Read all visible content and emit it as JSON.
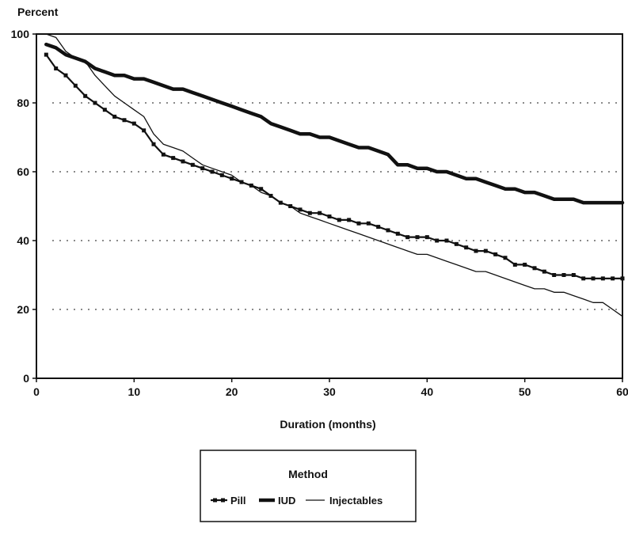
{
  "chart_data": {
    "type": "line",
    "ylabel": "Percent",
    "xlabel": "Duration (months)",
    "xlim": [
      0,
      60
    ],
    "ylim": [
      0,
      100
    ],
    "x_ticks": [
      0,
      10,
      20,
      30,
      40,
      50,
      60
    ],
    "y_ticks": [
      0,
      20,
      40,
      60,
      80,
      100
    ],
    "grid": "dotted horizontal",
    "legend": {
      "title": "Method",
      "placement": "bottom-center"
    },
    "colors": {
      "line": "#111111",
      "background": "#ffffff"
    },
    "series": [
      {
        "name": "Pill",
        "style": "line-with-square-markers",
        "points": [
          [
            1,
            94
          ],
          [
            2,
            90
          ],
          [
            3,
            88
          ],
          [
            4,
            85
          ],
          [
            5,
            82
          ],
          [
            6,
            80
          ],
          [
            7,
            78
          ],
          [
            8,
            76
          ],
          [
            9,
            75
          ],
          [
            10,
            74
          ],
          [
            11,
            72
          ],
          [
            12,
            68
          ],
          [
            13,
            65
          ],
          [
            14,
            64
          ],
          [
            15,
            63
          ],
          [
            16,
            62
          ],
          [
            17,
            61
          ],
          [
            18,
            60
          ],
          [
            19,
            59
          ],
          [
            20,
            58
          ],
          [
            21,
            57
          ],
          [
            22,
            56
          ],
          [
            23,
            55
          ],
          [
            24,
            53
          ],
          [
            25,
            51
          ],
          [
            26,
            50
          ],
          [
            27,
            49
          ],
          [
            28,
            48
          ],
          [
            29,
            48
          ],
          [
            30,
            47
          ],
          [
            31,
            46
          ],
          [
            32,
            46
          ],
          [
            33,
            45
          ],
          [
            34,
            45
          ],
          [
            35,
            44
          ],
          [
            36,
            43
          ],
          [
            37,
            42
          ],
          [
            38,
            41
          ],
          [
            39,
            41
          ],
          [
            40,
            41
          ],
          [
            41,
            40
          ],
          [
            42,
            40
          ],
          [
            43,
            39
          ],
          [
            44,
            38
          ],
          [
            45,
            37
          ],
          [
            46,
            37
          ],
          [
            47,
            36
          ],
          [
            48,
            35
          ],
          [
            49,
            33
          ],
          [
            50,
            33
          ],
          [
            51,
            32
          ],
          [
            52,
            31
          ],
          [
            53,
            30
          ],
          [
            54,
            30
          ],
          [
            55,
            30
          ],
          [
            56,
            29
          ],
          [
            57,
            29
          ],
          [
            58,
            29
          ],
          [
            59,
            29
          ],
          [
            60,
            29
          ]
        ]
      },
      {
        "name": "IUD",
        "style": "thick-line",
        "points": [
          [
            1,
            97
          ],
          [
            2,
            96
          ],
          [
            3,
            94
          ],
          [
            4,
            93
          ],
          [
            5,
            92
          ],
          [
            6,
            90
          ],
          [
            7,
            89
          ],
          [
            8,
            88
          ],
          [
            9,
            88
          ],
          [
            10,
            87
          ],
          [
            11,
            87
          ],
          [
            12,
            86
          ],
          [
            13,
            85
          ],
          [
            14,
            84
          ],
          [
            15,
            84
          ],
          [
            16,
            83
          ],
          [
            17,
            82
          ],
          [
            18,
            81
          ],
          [
            19,
            80
          ],
          [
            20,
            79
          ],
          [
            21,
            78
          ],
          [
            22,
            77
          ],
          [
            23,
            76
          ],
          [
            24,
            74
          ],
          [
            25,
            73
          ],
          [
            26,
            72
          ],
          [
            27,
            71
          ],
          [
            28,
            71
          ],
          [
            29,
            70
          ],
          [
            30,
            70
          ],
          [
            31,
            69
          ],
          [
            32,
            68
          ],
          [
            33,
            67
          ],
          [
            34,
            67
          ],
          [
            35,
            66
          ],
          [
            36,
            65
          ],
          [
            37,
            62
          ],
          [
            38,
            62
          ],
          [
            39,
            61
          ],
          [
            40,
            61
          ],
          [
            41,
            60
          ],
          [
            42,
            60
          ],
          [
            43,
            59
          ],
          [
            44,
            58
          ],
          [
            45,
            58
          ],
          [
            46,
            57
          ],
          [
            47,
            56
          ],
          [
            48,
            55
          ],
          [
            49,
            55
          ],
          [
            50,
            54
          ],
          [
            51,
            54
          ],
          [
            52,
            53
          ],
          [
            53,
            52
          ],
          [
            54,
            52
          ],
          [
            55,
            52
          ],
          [
            56,
            51
          ],
          [
            57,
            51
          ],
          [
            58,
            51
          ],
          [
            59,
            51
          ],
          [
            60,
            51
          ]
        ]
      },
      {
        "name": "Injectables",
        "style": "thin-line",
        "points": [
          [
            1,
            100
          ],
          [
            2,
            99
          ],
          [
            3,
            95
          ],
          [
            4,
            93
          ],
          [
            5,
            92
          ],
          [
            6,
            88
          ],
          [
            7,
            85
          ],
          [
            8,
            82
          ],
          [
            9,
            80
          ],
          [
            10,
            78
          ],
          [
            11,
            76
          ],
          [
            12,
            71
          ],
          [
            13,
            68
          ],
          [
            14,
            67
          ],
          [
            15,
            66
          ],
          [
            16,
            64
          ],
          [
            17,
            62
          ],
          [
            18,
            61
          ],
          [
            19,
            60
          ],
          [
            20,
            59
          ],
          [
            21,
            57
          ],
          [
            22,
            56
          ],
          [
            23,
            54
          ],
          [
            24,
            53
          ],
          [
            25,
            51
          ],
          [
            26,
            50
          ],
          [
            27,
            48
          ],
          [
            28,
            47
          ],
          [
            29,
            46
          ],
          [
            30,
            45
          ],
          [
            31,
            44
          ],
          [
            32,
            43
          ],
          [
            33,
            42
          ],
          [
            34,
            41
          ],
          [
            35,
            40
          ],
          [
            36,
            39
          ],
          [
            37,
            38
          ],
          [
            38,
            37
          ],
          [
            39,
            36
          ],
          [
            40,
            36
          ],
          [
            41,
            35
          ],
          [
            42,
            34
          ],
          [
            43,
            33
          ],
          [
            44,
            32
          ],
          [
            45,
            31
          ],
          [
            46,
            31
          ],
          [
            47,
            30
          ],
          [
            48,
            29
          ],
          [
            49,
            28
          ],
          [
            50,
            27
          ],
          [
            51,
            26
          ],
          [
            52,
            26
          ],
          [
            53,
            25
          ],
          [
            54,
            25
          ],
          [
            55,
            24
          ],
          [
            56,
            23
          ],
          [
            57,
            22
          ],
          [
            58,
            22
          ],
          [
            59,
            20
          ],
          [
            60,
            18
          ]
        ]
      }
    ]
  }
}
